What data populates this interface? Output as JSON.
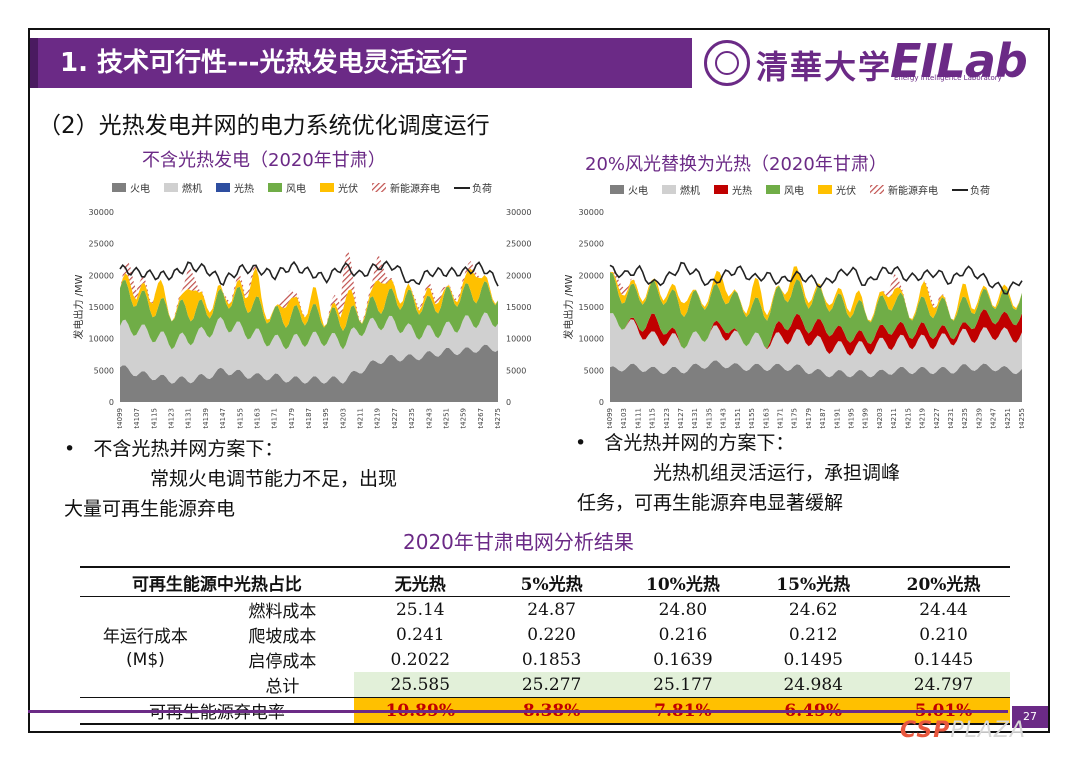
{
  "slide": {
    "title": "1. 技术可行性---光热发电灵活运行",
    "logo_text": "清華大学",
    "logo_lab": "EILab",
    "logo_lab_sub": "Energy Intelligence Laboratory",
    "subtitle": "（2）光热发电并网的电力系统优化调度运行",
    "page_number": "27"
  },
  "chart_data": [
    {
      "type": "area",
      "title": "不含光热发电（2020年甘肃）",
      "ylabel": "发电出力 /MW",
      "ylim": [
        0,
        30000
      ],
      "yticks": [
        "30000",
        "25000",
        "20000",
        "15000",
        "10000",
        "5000",
        "0"
      ],
      "right_yticks": [
        "30000",
        "25000",
        "20000",
        "15000",
        "10000",
        "5000",
        "0"
      ],
      "xticks": [
        "t4099",
        "t4107",
        "t4115",
        "t4123",
        "t4131",
        "t4139",
        "t4147",
        "t4155",
        "t4163",
        "t4171",
        "t4179",
        "t4187",
        "t4195",
        "t4203",
        "t4211",
        "t4219",
        "t4227",
        "t4235",
        "t4243",
        "t4251",
        "t4259",
        "t4267",
        "t4275"
      ],
      "legend": [
        {
          "name": "火电",
          "color": "#7f7f7f"
        },
        {
          "name": "燃机",
          "color": "#d0d0d0"
        },
        {
          "name": "光热",
          "color": "#2e4ea0"
        },
        {
          "name": "风电",
          "color": "#70ad47"
        },
        {
          "name": "光伏",
          "color": "#ffc000"
        },
        {
          "name": "新能源弃电",
          "color": "#c0504d"
        },
        {
          "name": "负荷",
          "color": "#222222"
        }
      ],
      "approx_series": {
        "火电": [
          5500,
          4500,
          4000,
          3500,
          3500,
          4000,
          5000,
          4500,
          4000,
          4000,
          3500,
          3500,
          3500,
          3500,
          5000,
          6500,
          7000,
          7000,
          7500,
          8000,
          8000,
          8500,
          8500
        ],
        "燃机": [
          6500,
          7000,
          6500,
          6000,
          6500,
          7000,
          7500,
          7000,
          6500,
          5500,
          6000,
          6500,
          6500,
          6000,
          6500,
          6000,
          5500,
          4000,
          3500,
          3500,
          4500,
          4500,
          4500
        ],
        "风电": [
          6000,
          5000,
          4500,
          5000,
          4500,
          3500,
          4000,
          5000,
          4500,
          4000,
          4000,
          4000,
          3500,
          3500,
          2500,
          3000,
          4000,
          5000,
          4000,
          5000,
          4500,
          4500,
          4000
        ],
        "光伏": [
          0,
          3000,
          4000,
          0,
          4000,
          3500,
          0,
          3500,
          4000,
          0,
          4000,
          3500,
          0,
          4500,
          0,
          4000,
          4000,
          0,
          4000,
          0,
          3500,
          3500,
          0
        ],
        "新能源弃电": [
          0,
          4000,
          0,
          0,
          3000,
          0,
          0,
          2500,
          0,
          0,
          2000,
          0,
          0,
          7000,
          0,
          3500,
          0,
          0,
          2500,
          0,
          2000,
          0,
          0
        ],
        "负荷": [
          21000,
          20500,
          20000,
          20000,
          21500,
          21000,
          19000,
          21000,
          21000,
          20000,
          21500,
          20500,
          19500,
          21500,
          20000,
          21500,
          21500,
          18500,
          20500,
          20500,
          20500,
          21500,
          19000
        ]
      }
    },
    {
      "type": "area",
      "title": "20%风光替换为光热（2020年甘肃）",
      "ylabel": "发电出力 /MW",
      "ylim": [
        0,
        30000
      ],
      "yticks": [
        "30000",
        "25000",
        "20000",
        "15000",
        "10000",
        "5000",
        "0"
      ],
      "xticks": [
        "t4099",
        "t4103",
        "t4111",
        "t4115",
        "t4123",
        "t4127",
        "t4131",
        "t4135",
        "t4143",
        "t4151",
        "t4155",
        "t4163",
        "t4171",
        "t4175",
        "t4179",
        "t4187",
        "t4191",
        "t4195",
        "t4199",
        "t4203",
        "t4211",
        "t4215",
        "t4219",
        "t4227",
        "t4231",
        "t4235",
        "t4239",
        "t4247",
        "t4251",
        "t4255"
      ],
      "legend": [
        {
          "name": "火电",
          "color": "#7f7f7f"
        },
        {
          "name": "燃机",
          "color": "#d0d0d0"
        },
        {
          "name": "光热",
          "color": "#c00000"
        },
        {
          "name": "风电",
          "color": "#70ad47"
        },
        {
          "name": "光伏",
          "color": "#ffc000"
        },
        {
          "name": "新能源弃电",
          "color": "#c0504d"
        },
        {
          "name": "负荷",
          "color": "#222222"
        }
      ],
      "approx_series": {
        "火电": [
          5000,
          5500,
          5500,
          5000,
          5000,
          5000,
          5500,
          6000,
          6000,
          5500,
          5500,
          5500,
          5500,
          5500,
          5000,
          4500,
          4500,
          4500,
          4500,
          4500,
          5000,
          5000,
          5000,
          5000,
          5000,
          5500,
          5500,
          5500,
          5000,
          5000
        ],
        "燃机": [
          8000,
          7000,
          6000,
          5000,
          5000,
          4500,
          4500,
          5000,
          5000,
          4500,
          4500,
          4000,
          4500,
          5000,
          5000,
          4500,
          4000,
          4000,
          4000,
          4500,
          4500,
          4500,
          4500,
          4500,
          5000,
          5000,
          5000,
          5500,
          5500,
          5500
        ],
        "光热": [
          0,
          0,
          500,
          3000,
          1500,
          0,
          0,
          0,
          1500,
          0,
          0,
          0,
          2000,
          2500,
          2000,
          3000,
          2500,
          2000,
          1500,
          2000,
          2500,
          1500,
          2000,
          1500,
          1000,
          1000,
          3000,
          2500,
          2500,
          3000
        ],
        "风电": [
          6000,
          4500,
          5000,
          4500,
          5500,
          5500,
          6000,
          5500,
          5000,
          5500,
          5000,
          5000,
          5000,
          5000,
          4500,
          4500,
          4500,
          4500,
          4000,
          4000,
          4500,
          3500,
          3500,
          4000,
          3500,
          3500,
          2500,
          3000,
          3000,
          3000
        ],
        "光伏": [
          0,
          1500,
          2000,
          0,
          2500,
          2500,
          0,
          2000,
          2500,
          0,
          2500,
          2500,
          0,
          3000,
          2500,
          0,
          2500,
          2500,
          0,
          2000,
          2000,
          0,
          2500,
          2000,
          0,
          2000,
          2000,
          0,
          2000,
          0
        ],
        "新能源弃电": [
          0,
          1500,
          0,
          0,
          0,
          0,
          0,
          0,
          0,
          0,
          0,
          0,
          0,
          0,
          0,
          0,
          0,
          0,
          0,
          0,
          2000,
          0,
          0,
          1000,
          0,
          0,
          0,
          0,
          0,
          0
        ],
        "负荷": [
          21000,
          20000,
          21000,
          18500,
          19500,
          21500,
          20500,
          18500,
          20000,
          21000,
          19500,
          20000,
          19000,
          20000,
          19500,
          18500,
          20000,
          21000,
          18500,
          20500,
          21000,
          19500,
          20000,
          20500,
          19000,
          21000,
          20000,
          18500,
          17500,
          19500
        ]
      }
    }
  ],
  "bullets": {
    "left_head": "不含光热并网方案下：",
    "left_line1": "常规火电调节能力不足，出现",
    "left_line2": "大量可再生能源弃电",
    "right_head": "含光热并网的方案下：",
    "right_line1": "光热机组灵活运行，承担调峰",
    "right_line2": "任务，可再生能源弃电显著缓解",
    "bullet_mark": "•"
  },
  "table": {
    "title": "2020年甘肃电网分析结果",
    "headers": [
      "可再生能源中光热占比",
      "无光热",
      "5%光热",
      "10%光热",
      "15%光热",
      "20%光热"
    ],
    "group_label_1": "年运行成本",
    "group_label_2": "(M$)",
    "rows": [
      {
        "label": "燃料成本",
        "values": [
          "25.14",
          "24.87",
          "24.80",
          "24.62",
          "24.44"
        ]
      },
      {
        "label": "爬坡成本",
        "values": [
          "0.241",
          "0.220",
          "0.216",
          "0.212",
          "0.210"
        ]
      },
      {
        "label": "启停成本",
        "values": [
          "0.2022",
          "0.1853",
          "0.1639",
          "0.1495",
          "0.1445"
        ]
      },
      {
        "label": "总计",
        "values": [
          "25.585",
          "25.277",
          "25.177",
          "24.984",
          "24.797"
        ]
      }
    ],
    "rate_row": {
      "label": "可再生能源弃电率",
      "values": [
        "10.89%",
        "8.38%",
        "7.81%",
        "6.49%",
        "5.01%"
      ]
    }
  },
  "watermark": {
    "part1": "CSP",
    "part2": "PLAZA"
  }
}
